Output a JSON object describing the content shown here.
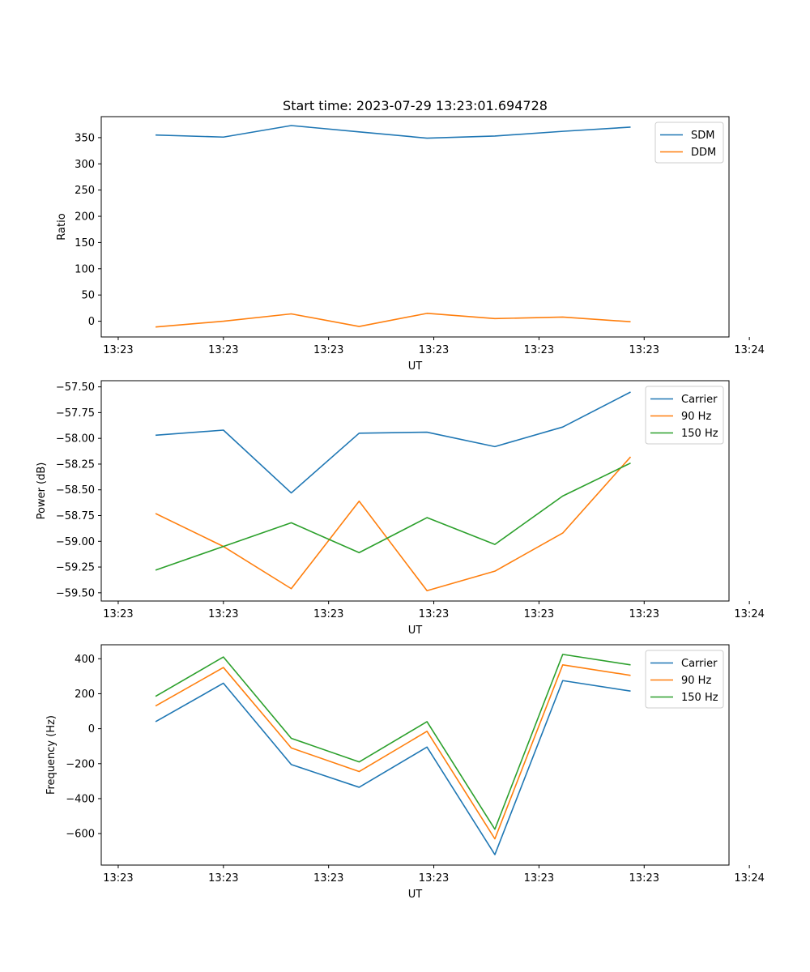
{
  "chart_data": [
    {
      "type": "line",
      "title": "Start time: 2023-07-29 13:23:01.694728",
      "xlabel": "UT",
      "ylabel": "Ratio",
      "x": [
        1,
        2,
        3,
        4,
        5,
        6,
        7,
        8
      ],
      "xlim": [
        0.2,
        9.45
      ],
      "x_ticks": [
        0.45,
        2.0,
        3.55,
        5.1,
        6.65,
        8.2,
        9.75
      ],
      "x_tick_labels": [
        "13:23",
        "13:23",
        "13:23",
        "13:23",
        "13:23",
        "13:23",
        "13:24"
      ],
      "ylim": [
        -30,
        390
      ],
      "y_ticks": [
        0,
        50,
        100,
        150,
        200,
        250,
        300,
        350
      ],
      "y_tick_labels": [
        "0",
        "50",
        "100",
        "150",
        "200",
        "250",
        "300",
        "350"
      ],
      "legend": "top-right",
      "series": [
        {
          "name": "SDM",
          "color": "#1f77b4",
          "values": [
            355,
            351,
            373,
            361,
            349,
            353,
            362,
            370
          ]
        },
        {
          "name": "DDM",
          "color": "#ff7f0e",
          "values": [
            -11,
            0,
            14,
            -10,
            15,
            5,
            8,
            -1
          ]
        }
      ]
    },
    {
      "type": "line",
      "title": "",
      "xlabel": "UT",
      "ylabel": "Power (dB)",
      "x": [
        1,
        2,
        3,
        4,
        5,
        6,
        7,
        8
      ],
      "xlim": [
        0.2,
        9.45
      ],
      "x_ticks": [
        0.45,
        2.0,
        3.55,
        5.1,
        6.65,
        8.2,
        9.75
      ],
      "x_tick_labels": [
        "13:23",
        "13:23",
        "13:23",
        "13:23",
        "13:23",
        "13:23",
        "13:24"
      ],
      "ylim": [
        -59.58,
        -57.44
      ],
      "y_ticks": [
        -59.5,
        -59.25,
        -59.0,
        -58.75,
        -58.5,
        -58.25,
        -58.0,
        -57.75,
        -57.5
      ],
      "y_tick_labels": [
        "−59.50",
        "−59.25",
        "−59.00",
        "−58.75",
        "−58.50",
        "−58.25",
        "−58.00",
        "−57.75",
        "−57.50"
      ],
      "legend": "top-right",
      "series": [
        {
          "name": "Carrier",
          "color": "#1f77b4",
          "values": [
            -57.97,
            -57.92,
            -58.53,
            -57.95,
            -57.94,
            -58.08,
            -57.89,
            -57.55
          ]
        },
        {
          "name": "90 Hz",
          "color": "#ff7f0e",
          "values": [
            -58.73,
            -59.05,
            -59.46,
            -58.61,
            -59.48,
            -59.29,
            -58.92,
            -58.18
          ]
        },
        {
          "name": "150 Hz",
          "color": "#2ca02c",
          "values": [
            -59.28,
            -59.05,
            -58.82,
            -59.11,
            -58.77,
            -59.03,
            -58.56,
            -58.24
          ]
        }
      ]
    },
    {
      "type": "line",
      "title": "",
      "xlabel": "UT",
      "ylabel": "Frequency (Hz)",
      "x": [
        1,
        2,
        3,
        4,
        5,
        6,
        7,
        8
      ],
      "xlim": [
        0.2,
        9.45
      ],
      "x_ticks": [
        0.45,
        2.0,
        3.55,
        5.1,
        6.65,
        8.2,
        9.75
      ],
      "x_tick_labels": [
        "13:23",
        "13:23",
        "13:23",
        "13:23",
        "13:23",
        "13:23",
        "13:24"
      ],
      "ylim": [
        -780,
        480
      ],
      "y_ticks": [
        -600,
        -400,
        -200,
        0,
        200,
        400
      ],
      "y_tick_labels": [
        "−600",
        "−400",
        "−200",
        "0",
        "200",
        "400"
      ],
      "legend": "top-right",
      "series": [
        {
          "name": "Carrier",
          "color": "#1f77b4",
          "values": [
            40,
            260,
            -205,
            -335,
            -105,
            -720,
            275,
            215
          ]
        },
        {
          "name": "90 Hz",
          "color": "#ff7f0e",
          "values": [
            130,
            350,
            -110,
            -245,
            -15,
            -630,
            365,
            305
          ]
        },
        {
          "name": "150 Hz",
          "color": "#2ca02c",
          "values": [
            185,
            410,
            -55,
            -190,
            40,
            -575,
            425,
            365
          ]
        }
      ]
    }
  ]
}
